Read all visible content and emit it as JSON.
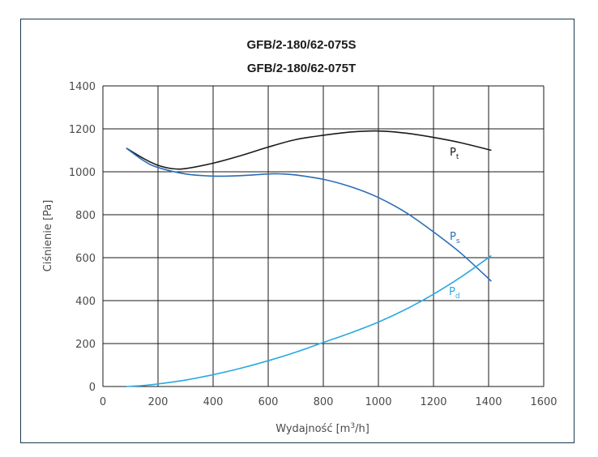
{
  "chart_data": {
    "type": "line",
    "title": "GFB/2-180/62-075S",
    "subtitle": "GFB/2-180/62-075T",
    "xlabel": "Wydajność [m³/h]",
    "xlabel_main": "Wydajność [m",
    "xlabel_sup": "3",
    "xlabel_tail": "/h]",
    "ylabel": "Ciśnienie [Pa]",
    "xlim": [
      0,
      1600
    ],
    "ylim": [
      0,
      1400
    ],
    "xticks": [
      "0",
      "200",
      "400",
      "600",
      "800",
      "1000",
      "1200",
      "1400",
      "1600"
    ],
    "yticks": [
      "0",
      "200",
      "400",
      "600",
      "800",
      "1000",
      "1200",
      "1400"
    ],
    "grid": true,
    "series": [
      {
        "name": "Pt",
        "label_main": "P",
        "label_sub": "t",
        "color": "#1a1a1a",
        "x": [
          85,
          150,
          200,
          250,
          300,
          400,
          500,
          600,
          700,
          800,
          900,
          1000,
          1100,
          1200,
          1300,
          1410
        ],
        "y": [
          1110,
          1060,
          1030,
          1015,
          1015,
          1040,
          1075,
          1115,
          1150,
          1170,
          1185,
          1190,
          1180,
          1160,
          1135,
          1100
        ]
      },
      {
        "name": "Ps",
        "label_main": "P",
        "label_sub": "s",
        "color": "#2a6db5",
        "x": [
          85,
          150,
          200,
          300,
          400,
          500,
          600,
          650,
          700,
          800,
          900,
          1000,
          1100,
          1200,
          1300,
          1410
        ],
        "y": [
          1110,
          1050,
          1020,
          990,
          980,
          982,
          990,
          990,
          985,
          965,
          930,
          880,
          810,
          720,
          620,
          490
        ]
      },
      {
        "name": "Pd",
        "label_main": "P",
        "label_sub": "d",
        "color": "#29a9e0",
        "x": [
          85,
          150,
          200,
          300,
          400,
          500,
          600,
          700,
          800,
          900,
          1000,
          1100,
          1200,
          1300,
          1410
        ],
        "y": [
          0,
          5,
          12,
          30,
          55,
          85,
          120,
          160,
          205,
          250,
          300,
          360,
          430,
          510,
          610
        ]
      }
    ]
  }
}
